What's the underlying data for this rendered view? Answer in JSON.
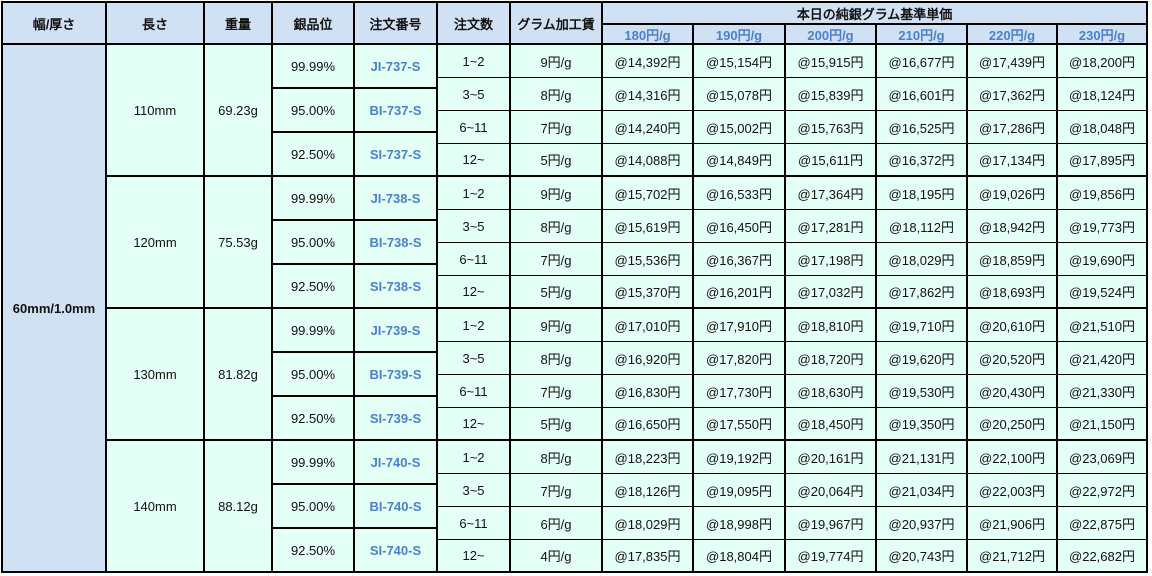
{
  "headers": {
    "width_thickness": "幅/厚さ",
    "length": "長さ",
    "weight": "重量",
    "purity": "銀品位",
    "order_no": "注文番号",
    "quantity": "注文数",
    "gram_fee": "グラム加工賃",
    "base_price_title": "本日の純銀グラム基準単価",
    "base_prices": [
      "180円/g",
      "190円/g",
      "200円/g",
      "210円/g",
      "220円/g",
      "230円/g"
    ]
  },
  "colors": {
    "header_bg": "#cfe1f3",
    "body_bg": "#e4fff6",
    "accent_blue": "#4a80cc",
    "border": "#000000"
  },
  "width_thickness": "60mm/1.0mm",
  "groups": [
    {
      "length": "110mm",
      "weight": "69.23g",
      "grades": [
        {
          "purity": "99.99%",
          "order_no": "JI-737-S"
        },
        {
          "purity": "95.00%",
          "order_no": "BI-737-S"
        },
        {
          "purity": "92.50%",
          "order_no": "SI-737-S"
        }
      ],
      "tiers": [
        {
          "qty": "1~2",
          "fee": "9円/g",
          "prices": [
            "@14,392円",
            "@15,154円",
            "@15,915円",
            "@16,677円",
            "@17,439円",
            "@18,200円"
          ]
        },
        {
          "qty": "3~5",
          "fee": "8円/g",
          "prices": [
            "@14,316円",
            "@15,078円",
            "@15,839円",
            "@16,601円",
            "@17,362円",
            "@18,124円"
          ]
        },
        {
          "qty": "6~11",
          "fee": "7円/g",
          "prices": [
            "@14,240円",
            "@15,002円",
            "@15,763円",
            "@16,525円",
            "@17,286円",
            "@18,048円"
          ]
        },
        {
          "qty": "12~",
          "fee": "5円/g",
          "prices": [
            "@14,088円",
            "@14,849円",
            "@15,611円",
            "@16,372円",
            "@17,134円",
            "@17,895円"
          ]
        }
      ]
    },
    {
      "length": "120mm",
      "weight": "75.53g",
      "grades": [
        {
          "purity": "99.99%",
          "order_no": "JI-738-S"
        },
        {
          "purity": "95.00%",
          "order_no": "BI-738-S"
        },
        {
          "purity": "92.50%",
          "order_no": "SI-738-S"
        }
      ],
      "tiers": [
        {
          "qty": "1~2",
          "fee": "9円/g",
          "prices": [
            "@15,702円",
            "@16,533円",
            "@17,364円",
            "@18,195円",
            "@19,026円",
            "@19,856円"
          ]
        },
        {
          "qty": "3~5",
          "fee": "8円/g",
          "prices": [
            "@15,619円",
            "@16,450円",
            "@17,281円",
            "@18,112円",
            "@18,942円",
            "@19,773円"
          ]
        },
        {
          "qty": "6~11",
          "fee": "7円/g",
          "prices": [
            "@15,536円",
            "@16,367円",
            "@17,198円",
            "@18,029円",
            "@18,859円",
            "@19,690円"
          ]
        },
        {
          "qty": "12~",
          "fee": "5円/g",
          "prices": [
            "@15,370円",
            "@16,201円",
            "@17,032円",
            "@17,862円",
            "@18,693円",
            "@19,524円"
          ]
        }
      ]
    },
    {
      "length": "130mm",
      "weight": "81.82g",
      "grades": [
        {
          "purity": "99.99%",
          "order_no": "JI-739-S"
        },
        {
          "purity": "95.00%",
          "order_no": "BI-739-S"
        },
        {
          "purity": "92.50%",
          "order_no": "SI-739-S"
        }
      ],
      "tiers": [
        {
          "qty": "1~2",
          "fee": "9円/g",
          "prices": [
            "@17,010円",
            "@17,910円",
            "@18,810円",
            "@19,710円",
            "@20,610円",
            "@21,510円"
          ]
        },
        {
          "qty": "3~5",
          "fee": "8円/g",
          "prices": [
            "@16,920円",
            "@17,820円",
            "@18,720円",
            "@19,620円",
            "@20,520円",
            "@21,420円"
          ]
        },
        {
          "qty": "6~11",
          "fee": "7円/g",
          "prices": [
            "@16,830円",
            "@17,730円",
            "@18,630円",
            "@19,530円",
            "@20,430円",
            "@21,330円"
          ]
        },
        {
          "qty": "12~",
          "fee": "5円/g",
          "prices": [
            "@16,650円",
            "@17,550円",
            "@18,450円",
            "@19,350円",
            "@20,250円",
            "@21,150円"
          ]
        }
      ]
    },
    {
      "length": "140mm",
      "weight": "88.12g",
      "grades": [
        {
          "purity": "99.99%",
          "order_no": "JI-740-S"
        },
        {
          "purity": "95.00%",
          "order_no": "BI-740-S"
        },
        {
          "purity": "92.50%",
          "order_no": "SI-740-S"
        }
      ],
      "tiers": [
        {
          "qty": "1~2",
          "fee": "8円/g",
          "prices": [
            "@18,223円",
            "@19,192円",
            "@20,161円",
            "@21,131円",
            "@22,100円",
            "@23,069円"
          ]
        },
        {
          "qty": "3~5",
          "fee": "7円/g",
          "prices": [
            "@18,126円",
            "@19,095円",
            "@20,064円",
            "@21,034円",
            "@22,003円",
            "@22,972円"
          ]
        },
        {
          "qty": "6~11",
          "fee": "6円/g",
          "prices": [
            "@18,029円",
            "@18,998円",
            "@19,967円",
            "@20,937円",
            "@21,906円",
            "@22,875円"
          ]
        },
        {
          "qty": "12~",
          "fee": "4円/g",
          "prices": [
            "@17,835円",
            "@18,804円",
            "@19,774円",
            "@20,743円",
            "@21,712円",
            "@22,682円"
          ]
        }
      ]
    }
  ]
}
